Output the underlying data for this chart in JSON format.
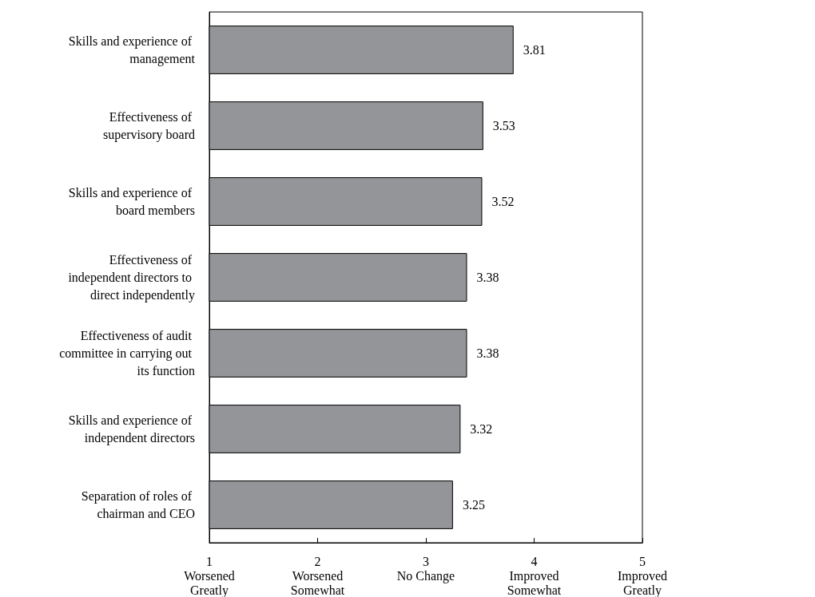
{
  "chart_data": {
    "type": "bar",
    "orientation": "horizontal",
    "categories": [
      "Skills and experience of management",
      "Effectiveness of supervisory board",
      "Skills and experience of board members",
      "Effectiveness of independent directors to direct independently",
      "Effectiveness of audit committee in carrying out its function",
      "Skills and experience of independent directors",
      "Separation of roles of chairman and CEO"
    ],
    "values": [
      3.81,
      3.53,
      3.52,
      3.38,
      3.38,
      3.32,
      3.25
    ],
    "color": "#939598",
    "data_labels": true,
    "grid": false,
    "xlim": [
      1,
      5
    ],
    "xticks": [
      {
        "value": 1,
        "label": "1\nWorsened\nGreatly"
      },
      {
        "value": 2,
        "label": "2\nWorsened\nSomewhat"
      },
      {
        "value": 3,
        "label": "3\nNo Change"
      },
      {
        "value": 4,
        "label": "4\nImproved\nSomewhat"
      },
      {
        "value": 5,
        "label": "5\nImproved\nGreatly"
      }
    ]
  }
}
